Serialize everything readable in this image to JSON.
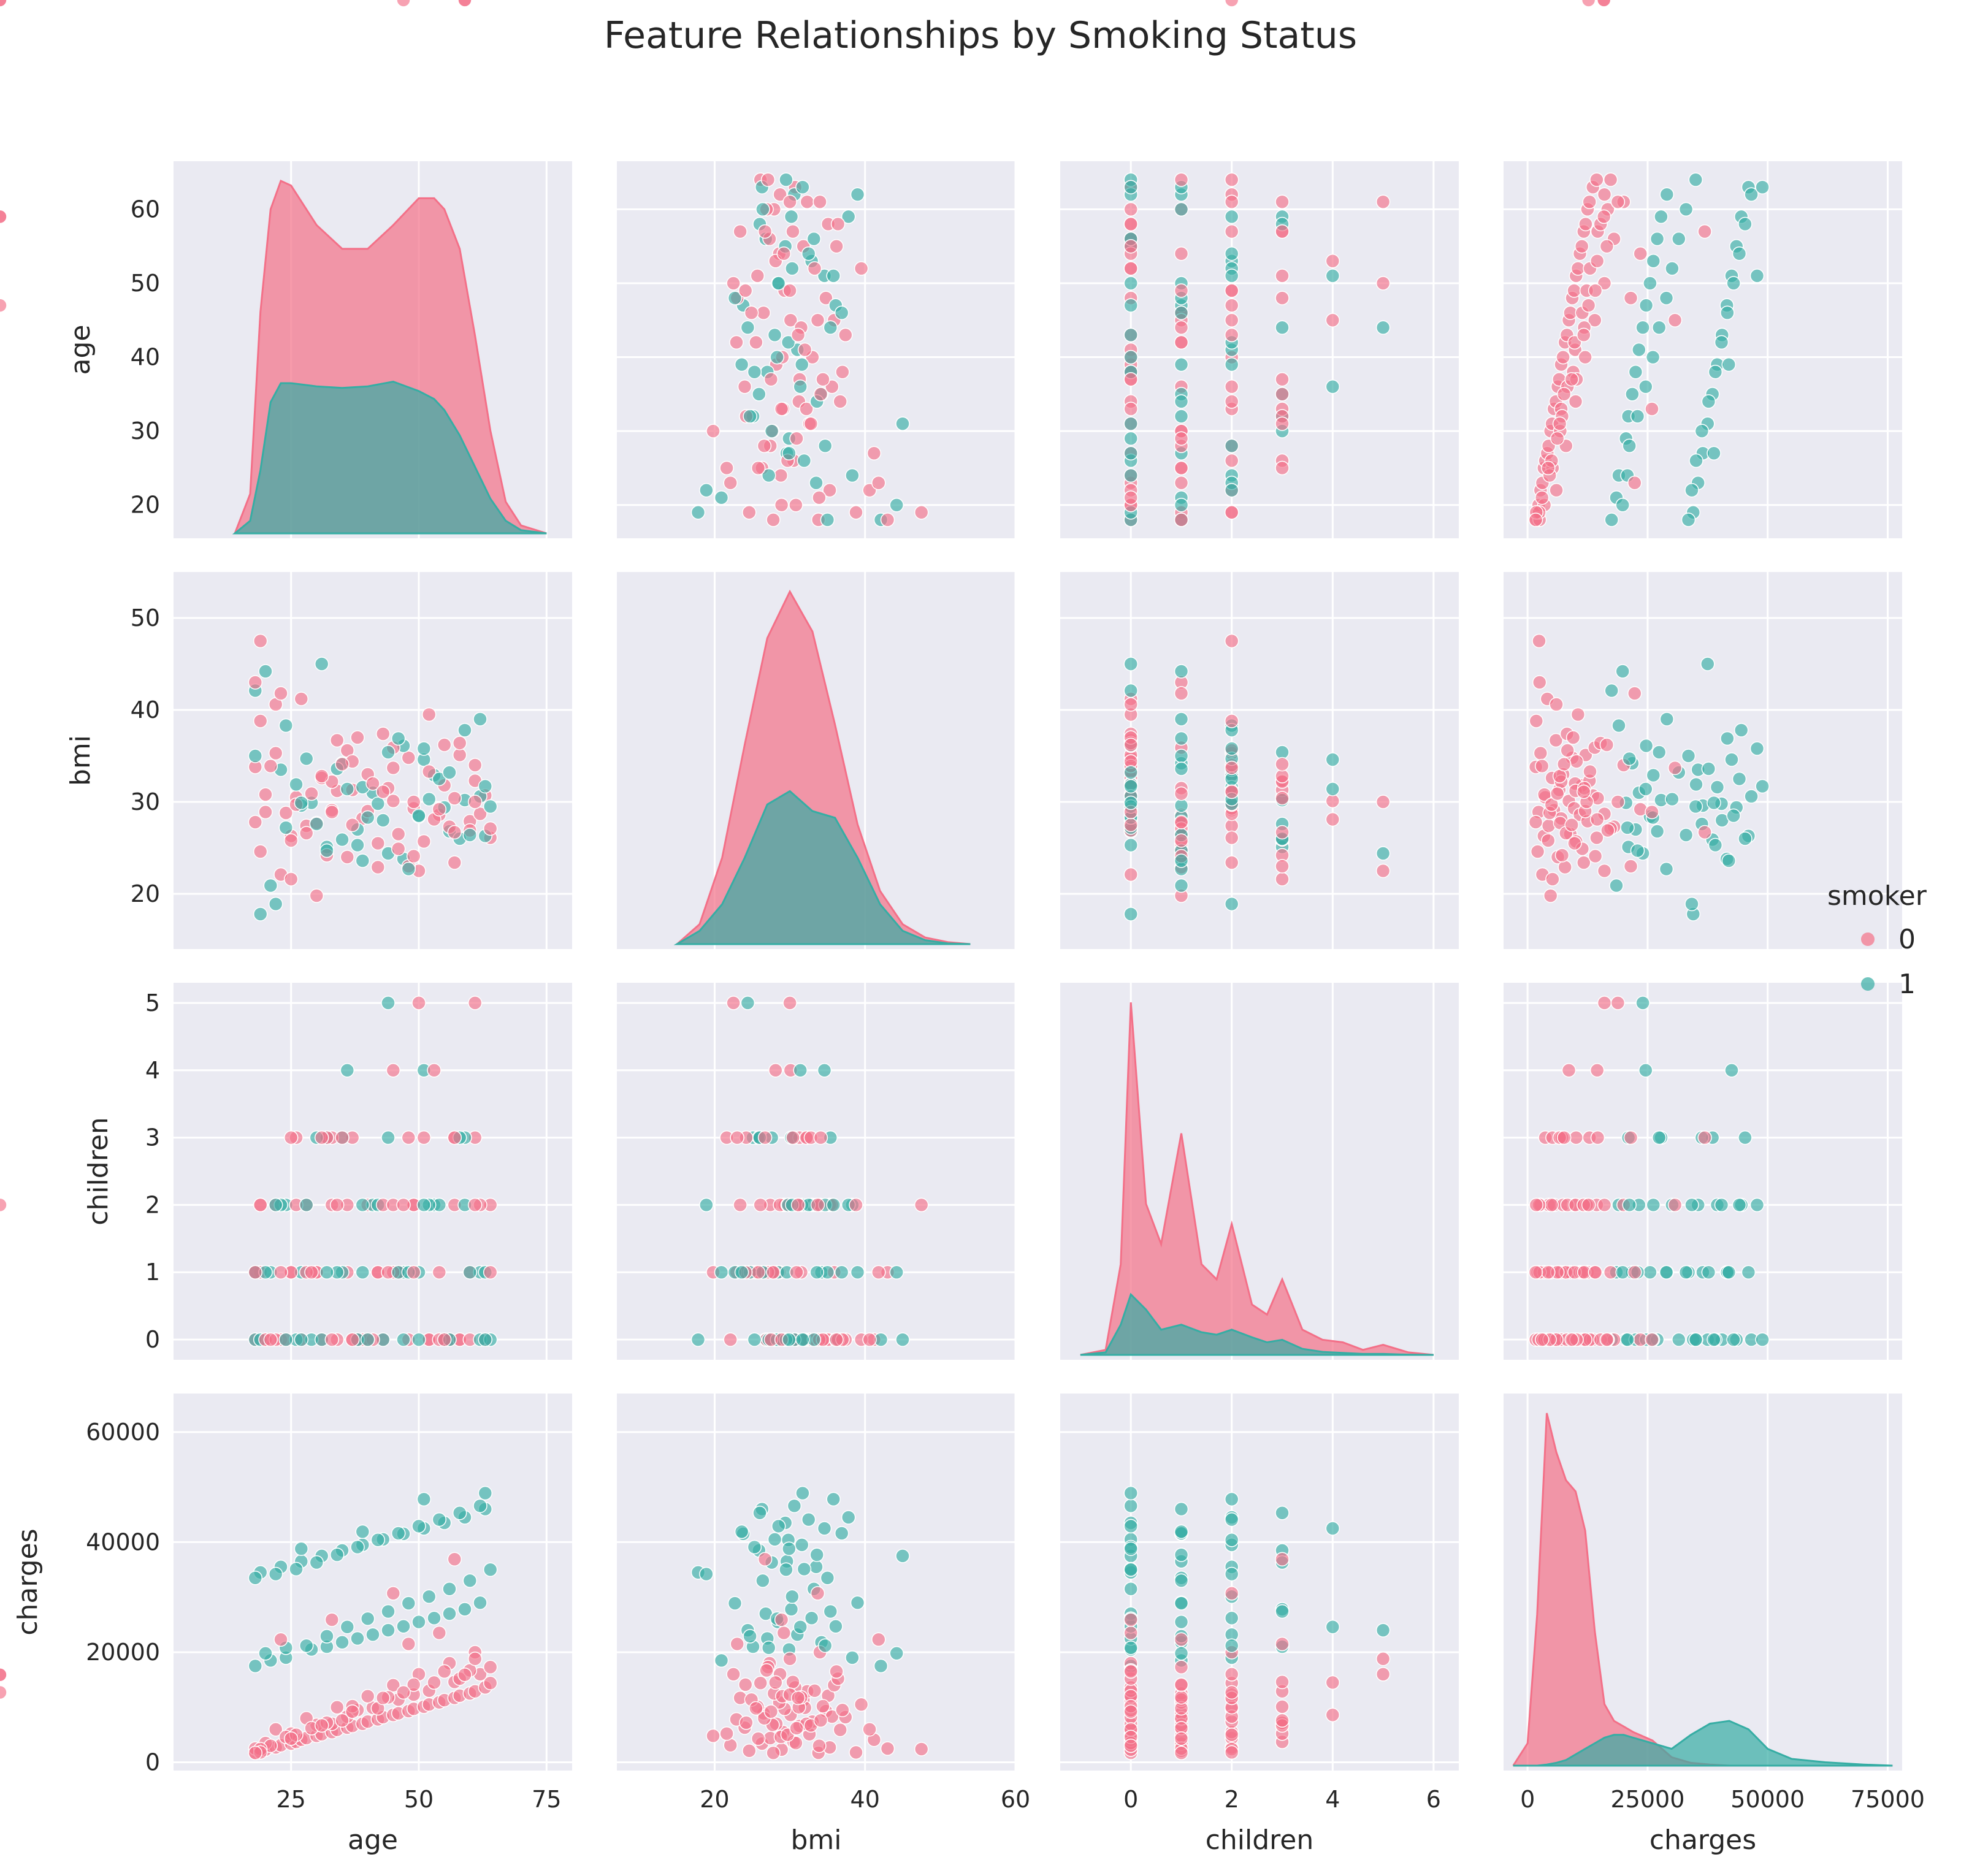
{
  "figure": {
    "title": "Feature Relationships by Smoking Status"
  },
  "legend": {
    "title": "smoker",
    "entries": [
      {
        "label": "0",
        "color": "#f37088"
      },
      {
        "label": "1",
        "color": "#36ada4"
      }
    ]
  },
  "colors": {
    "panel_bg": "#eaeaf2",
    "grid": "#ffffff",
    "nonsmoker": "#f37088",
    "smoker": "#36ada4"
  },
  "chart_data": {
    "type": "pairplot",
    "hue": "smoker",
    "vars": [
      "age",
      "bmi",
      "children",
      "charges"
    ],
    "variables": {
      "age": {
        "label": "age",
        "range": [
          2,
          80
        ],
        "ticks": [
          25,
          50,
          75
        ],
        "row_ticks": [
          20,
          30,
          40,
          50,
          60
        ],
        "row_range": [
          15.5,
          66.5
        ]
      },
      "bmi": {
        "label": "bmi",
        "range": [
          7,
          60
        ],
        "ticks": [
          20,
          40,
          60
        ],
        "row_ticks": [
          20,
          30,
          40,
          50
        ],
        "row_range": [
          14,
          55
        ]
      },
      "children": {
        "label": "children",
        "range": [
          -1.4,
          6.5
        ],
        "ticks": [
          0,
          2,
          4,
          6
        ],
        "row_ticks": [
          0,
          1,
          2,
          3,
          4,
          5
        ],
        "row_range": [
          -0.3,
          5.3
        ]
      },
      "charges": {
        "label": "charges",
        "range": [
          -5000,
          78000
        ],
        "ticks": [
          0,
          25000,
          50000,
          75000
        ],
        "row_ticks": [
          0,
          20000,
          40000,
          60000
        ],
        "row_range": [
          -1500,
          67000
        ]
      }
    },
    "kde": {
      "age": {
        "x": [
          14,
          17,
          19,
          21,
          23,
          25,
          30,
          35,
          40,
          45,
          50,
          53,
          55,
          58,
          61,
          64,
          67,
          70,
          75
        ],
        "series": [
          {
            "name": "0",
            "values": [
              0.0,
              0.0025,
              0.014,
              0.0205,
              0.0223,
              0.022,
              0.0195,
              0.018,
              0.018,
              0.0195,
              0.0212,
              0.0212,
              0.0205,
              0.018,
              0.0125,
              0.0065,
              0.002,
              0.0005,
              0.0
            ]
          },
          {
            "name": "1",
            "values": [
              0.0,
              0.0008,
              0.004,
              0.0083,
              0.0095,
              0.0095,
              0.0093,
              0.0092,
              0.0093,
              0.0096,
              0.009,
              0.0085,
              0.0078,
              0.0062,
              0.0042,
              0.0022,
              0.0008,
              0.0002,
              0.0
            ]
          }
        ]
      },
      "bmi": {
        "x": [
          15,
          18,
          21,
          24,
          27,
          30,
          33,
          36,
          39,
          42,
          45,
          48,
          51,
          54
        ],
        "series": [
          {
            "name": "0",
            "values": [
              0.0,
              0.003,
              0.013,
              0.03,
              0.046,
              0.053,
              0.047,
              0.033,
              0.018,
              0.008,
              0.003,
              0.001,
              0.0003,
              0.0
            ]
          },
          {
            "name": "1",
            "values": [
              0.0,
              0.002,
              0.006,
              0.013,
              0.021,
              0.023,
              0.02,
              0.019,
              0.013,
              0.006,
              0.002,
              0.0006,
              0.0001,
              0.0
            ]
          }
        ]
      },
      "children": {
        "x": [
          -1.0,
          -0.5,
          -0.2,
          0,
          0.3,
          0.6,
          1.0,
          1.4,
          1.7,
          2.0,
          2.4,
          2.7,
          3.0,
          3.4,
          3.8,
          4.2,
          4.6,
          5.0,
          5.5,
          6.0
        ],
        "series": [
          {
            "name": "0",
            "values": [
              0.0,
              0.01,
              0.18,
              0.7,
              0.3,
              0.22,
              0.44,
              0.18,
              0.15,
              0.26,
              0.1,
              0.08,
              0.15,
              0.05,
              0.03,
              0.025,
              0.01,
              0.02,
              0.005,
              0.0
            ]
          },
          {
            "name": "1",
            "values": [
              0.0,
              0.005,
              0.06,
              0.12,
              0.09,
              0.05,
              0.06,
              0.045,
              0.04,
              0.05,
              0.035,
              0.025,
              0.03,
              0.012,
              0.006,
              0.004,
              0.002,
              0.002,
              0.0005,
              0.0
            ]
          }
        ]
      },
      "charges": {
        "x": [
          -3000,
          0,
          2000,
          4000,
          6000,
          8000,
          10000,
          12000,
          14000,
          16000,
          18000,
          20000,
          22000,
          26000,
          30000,
          34000,
          38000,
          42000,
          46000,
          50000,
          55000,
          62000,
          70000,
          76000
        ],
        "series": [
          {
            "name": "0",
            "values": [
              0.0,
              0.4,
              2.7,
              6.3,
              5.6,
              5.1,
              4.9,
              4.2,
              2.4,
              1.1,
              0.8,
              0.7,
              0.6,
              0.45,
              0.15,
              0.05,
              0.02,
              0.0,
              0.0,
              0.0,
              0.0,
              0.0,
              0.0,
              0.0
            ]
          },
          {
            "name": "1",
            "values": [
              0.0,
              0.0,
              0.0,
              0.02,
              0.05,
              0.1,
              0.2,
              0.3,
              0.4,
              0.5,
              0.55,
              0.55,
              0.5,
              0.4,
              0.3,
              0.55,
              0.75,
              0.8,
              0.65,
              0.3,
              0.12,
              0.06,
              0.02,
              0.0
            ]
          }
        ]
      }
    },
    "scatter": {
      "age": [
        18,
        19,
        20,
        22,
        23,
        25,
        26,
        27,
        28,
        30,
        31,
        33,
        34,
        36,
        37,
        39,
        40,
        42,
        43,
        45,
        46,
        48,
        49,
        51,
        52,
        54,
        55,
        57,
        58,
        60,
        61,
        63,
        64,
        18,
        21,
        24,
        29,
        32,
        35,
        38,
        41,
        44,
        47,
        50,
        53,
        56,
        59,
        62,
        19,
        23,
        27,
        31,
        35,
        39,
        43,
        47,
        51,
        55,
        59,
        63,
        20,
        25,
        30,
        36,
        41,
        46,
        52,
        57,
        62,
        22,
        28,
        34,
        40,
        45,
        50,
        56,
        61,
        18,
        24,
        33,
        42,
        49,
        58,
        64,
        21,
        26,
        32,
        38,
        44,
        53,
        60,
        19,
        29,
        37,
        48,
        54,
        18,
        22,
        26,
        30,
        34,
        38,
        42,
        46,
        50,
        54,
        58,
        62,
        20,
        24,
        28,
        32,
        36,
        40,
        44,
        48,
        52,
        56,
        60,
        64,
        19,
        25,
        31,
        37,
        43,
        49,
        55,
        61,
        23,
        33,
        45,
        57,
        27,
        39,
        51,
        63,
        18,
        35,
        47,
        59
      ],
      "bmi": [
        33.8,
        24.6,
        28.9,
        35.3,
        22.1,
        26.3,
        30.5,
        41.2,
        27.4,
        19.8,
        32.6,
        29.1,
        36.7,
        24.0,
        31.3,
        28.2,
        33.0,
        22.9,
        37.4,
        30.1,
        26.5,
        34.8,
        29.3,
        25.7,
        39.5,
        28.6,
        31.8,
        23.4,
        35.1,
        27.9,
        32.3,
        30.7,
        26.1,
        42.1,
        20.9,
        38.3,
        29.9,
        25.1,
        34.2,
        27.0,
        31.0,
        24.4,
        36.1,
        28.4,
        32.9,
        26.8,
        30.2,
        39.0,
        17.8,
        33.5,
        29.6,
        45.0,
        25.9,
        31.6,
        28.0,
        23.8,
        34.6,
        29.4,
        37.8,
        26.3,
        30.8,
        21.6,
        27.7,
        35.6,
        32.0,
        24.9,
        33.3,
        30.4,
        28.7,
        40.6,
        26.6,
        31.2,
        29.0,
        35.9,
        22.5,
        27.3,
        34.0,
        43.0,
        28.8,
        32.2,
        25.5,
        30.0,
        36.4,
        27.1,
        33.9,
        29.7,
        24.2,
        37.0,
        31.5,
        28.1,
        26.9,
        47.5,
        30.9,
        34.4,
        23.0,
        29.2,
        35.0,
        18.9,
        31.9,
        27.6,
        33.6,
        25.3,
        29.8,
        36.9,
        28.5,
        32.5,
        26.0,
        30.6,
        44.2,
        27.2,
        34.7,
        24.7,
        31.4,
        28.3,
        35.4,
        22.7,
        30.3,
        33.2,
        26.4,
        29.5,
        38.8,
        25.8,
        32.8,
        27.5,
        31.1,
        24.1,
        36.2,
        30.0,
        41.8,
        28.9,
        33.7,
        26.7,
        29.9,
        23.6,
        35.8,
        31.7,
        27.8,
        34.1
      ],
      "children": [
        0,
        1,
        0,
        2,
        0,
        1,
        3,
        0,
        2,
        1,
        0,
        2,
        0,
        1,
        3,
        0,
        2,
        1,
        0,
        4,
        1,
        0,
        2,
        3,
        0,
        1,
        0,
        2,
        0,
        1,
        3,
        0,
        2,
        0,
        1,
        2,
        0,
        3,
        1,
        0,
        2,
        5,
        0,
        1,
        2,
        0,
        3,
        1,
        0,
        2,
        1,
        0,
        3,
        2,
        0,
        1,
        4,
        0,
        2,
        1,
        0,
        3,
        1,
        2,
        0,
        1,
        0,
        3,
        2,
        0,
        1,
        2,
        0,
        1,
        5,
        0,
        2,
        1,
        0,
        3,
        1,
        2,
        0,
        1,
        0,
        2,
        3,
        0,
        1,
        4,
        0,
        2,
        1,
        0,
        3,
        0,
        1,
        2,
        0,
        3,
        1,
        0,
        2,
        1,
        0,
        2,
        3,
        0,
        1,
        0,
        2,
        1,
        4,
        0,
        3,
        1,
        2,
        0,
        1,
        0,
        2,
        1,
        3,
        0,
        2,
        1,
        0,
        5,
        1,
        0,
        2,
        3,
        0,
        1,
        2,
        0,
        1,
        3,
        2
      ],
      "charges": [
        1720,
        2100,
        2300,
        2700,
        3100,
        3400,
        3700,
        4100,
        4400,
        4800,
        5100,
        5500,
        5900,
        6300,
        6600,
        7000,
        7400,
        7800,
        8200,
        8600,
        8900,
        9300,
        9700,
        10100,
        10500,
        10900,
        11300,
        11700,
        12100,
        12500,
        12900,
        13600,
        14400,
        17500,
        18500,
        19000,
        20500,
        21000,
        21800,
        22500,
        23200,
        24000,
        24700,
        25500,
        26200,
        27000,
        27800,
        29000,
        34500,
        35500,
        36500,
        37500,
        38500,
        39500,
        40500,
        41500,
        42500,
        43500,
        44500,
        46000,
        3500,
        5200,
        6800,
        8300,
        9900,
        11400,
        13000,
        14600,
        16000,
        6000,
        8000,
        10000,
        12000,
        14000,
        16000,
        18000,
        20000,
        2500,
        4600,
        7000,
        9800,
        12300,
        15200,
        17300,
        3000,
        5000,
        7200,
        9500,
        11800,
        14500,
        16700,
        2400,
        6200,
        10200,
        21500,
        23500,
        33500,
        34200,
        35100,
        36300,
        37700,
        39100,
        40400,
        41600,
        42900,
        44100,
        45300,
        46600,
        19800,
        20800,
        21200,
        22900,
        24600,
        26100,
        27400,
        28900,
        30100,
        31500,
        33000,
        35000,
        1800,
        4300,
        6700,
        9200,
        11700,
        14100,
        16500,
        18800,
        22300,
        25900,
        30700,
        36900,
        38800,
        41900,
        47800,
        48900,
        1700,
        7600,
        12700,
        15900
      ],
      "smoker": [
        0,
        0,
        0,
        0,
        0,
        0,
        0,
        0,
        0,
        0,
        0,
        0,
        0,
        0,
        0,
        0,
        0,
        0,
        0,
        0,
        0,
        0,
        0,
        0,
        0,
        0,
        0,
        0,
        0,
        0,
        0,
        0,
        0,
        1,
        1,
        1,
        1,
        1,
        1,
        1,
        1,
        1,
        1,
        1,
        1,
        1,
        1,
        1,
        1,
        1,
        1,
        1,
        1,
        1,
        1,
        1,
        1,
        1,
        1,
        1,
        0,
        0,
        0,
        0,
        0,
        0,
        0,
        0,
        0,
        0,
        0,
        0,
        0,
        0,
        0,
        0,
        0,
        0,
        0,
        0,
        0,
        0,
        0,
        0,
        0,
        0,
        0,
        0,
        0,
        0,
        0,
        0,
        0,
        0,
        0,
        0,
        1,
        1,
        1,
        1,
        1,
        1,
        1,
        1,
        1,
        1,
        1,
        1,
        1,
        1,
        1,
        1,
        1,
        1,
        1,
        1,
        1,
        1,
        1,
        1,
        0,
        0,
        0,
        0,
        0,
        0,
        0,
        0,
        0,
        0,
        0,
        0,
        1,
        1,
        1,
        1,
        0,
        0,
        0,
        0
      ]
    }
  }
}
